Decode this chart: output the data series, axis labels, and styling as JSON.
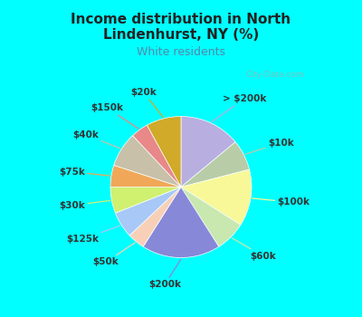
{
  "title": "Income distribution in North\nLindenhurst, NY (%)",
  "subtitle": "White residents",
  "bg_cyan": "#00ffff",
  "chart_bg": "#c8e8d0",
  "labels": [
    "> $200k",
    "$10k",
    "$100k",
    "$60k",
    "$200k",
    "$50k",
    "$125k",
    "$30k",
    "$75k",
    "$40k",
    "$150k",
    "$20k"
  ],
  "values": [
    14,
    7,
    13,
    7,
    18,
    4,
    6,
    6,
    5,
    8,
    4,
    8
  ],
  "colors": [
    "#b8aee0",
    "#b8cca8",
    "#f8f898",
    "#c8e8b0",
    "#8888d8",
    "#f8d0b8",
    "#a8c8f8",
    "#d0f070",
    "#f0a858",
    "#c8c0a8",
    "#e88888",
    "#d0aa28"
  ],
  "title_fontsize": 11,
  "subtitle_fontsize": 9,
  "label_fontsize": 7.5,
  "watermark": "City-Data.com",
  "title_color": "#222222",
  "subtitle_color": "#5588aa",
  "label_color": "#333333"
}
